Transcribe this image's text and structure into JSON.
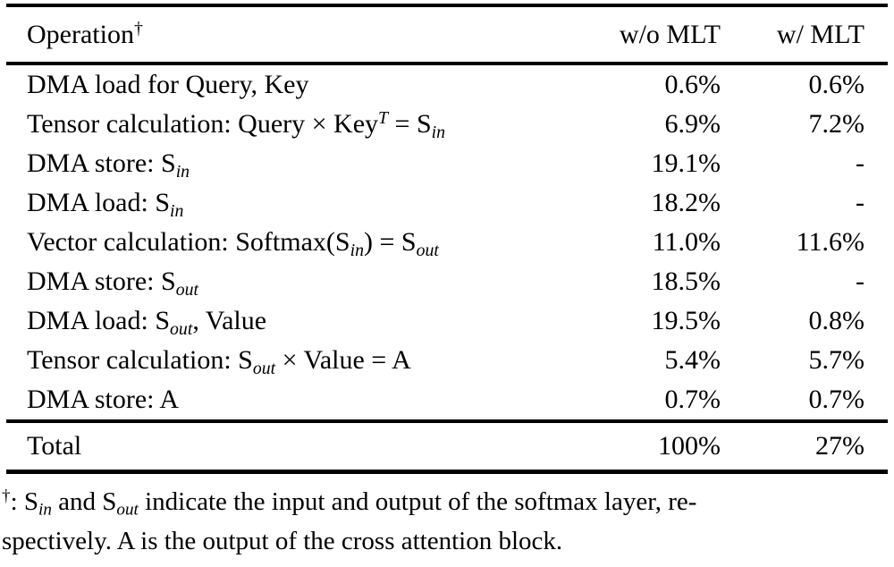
{
  "table": {
    "header": {
      "operation": [
        {
          "t": "Operation"
        },
        {
          "t": "†",
          "s": "sup"
        }
      ],
      "col_wo_mlt": "w/o MLT",
      "col_w_mlt": "w/ MLT"
    },
    "rows": [
      {
        "op": [
          {
            "t": "DMA load for Query, Key"
          }
        ],
        "wo_mlt": "0.6%",
        "w_mlt": "0.6%"
      },
      {
        "op": [
          {
            "t": "Tensor calculation: Query × Key"
          },
          {
            "t": "T",
            "s": "sup",
            "i": true
          },
          {
            "t": " = S"
          },
          {
            "t": "in",
            "s": "sub"
          }
        ],
        "wo_mlt": "6.9%",
        "w_mlt": "7.2%"
      },
      {
        "op": [
          {
            "t": "DMA store: S"
          },
          {
            "t": "in",
            "s": "sub"
          }
        ],
        "wo_mlt": "19.1%",
        "w_mlt": "-"
      },
      {
        "op": [
          {
            "t": "DMA load: S"
          },
          {
            "t": "in",
            "s": "sub"
          }
        ],
        "wo_mlt": "18.2%",
        "w_mlt": "-"
      },
      {
        "op": [
          {
            "t": "Vector calculation: Softmax(S"
          },
          {
            "t": "in",
            "s": "sub"
          },
          {
            "t": ") = S"
          },
          {
            "t": "out",
            "s": "sub"
          }
        ],
        "wo_mlt": "11.0%",
        "w_mlt": "11.6%"
      },
      {
        "op": [
          {
            "t": "DMA store: S"
          },
          {
            "t": "out",
            "s": "sub"
          }
        ],
        "wo_mlt": "18.5%",
        "w_mlt": "-"
      },
      {
        "op": [
          {
            "t": "DMA load: S"
          },
          {
            "t": "out",
            "s": "sub"
          },
          {
            "t": ", Value"
          }
        ],
        "wo_mlt": "19.5%",
        "w_mlt": "0.8%"
      },
      {
        "op": [
          {
            "t": "Tensor calculation: S"
          },
          {
            "t": "out",
            "s": "sub"
          },
          {
            "t": " × Value = A"
          }
        ],
        "wo_mlt": "5.4%",
        "w_mlt": "5.7%"
      },
      {
        "op": [
          {
            "t": "DMA store: A"
          }
        ],
        "wo_mlt": "0.7%",
        "w_mlt": "0.7%"
      }
    ],
    "total": {
      "label": "Total",
      "wo_mlt": "100%",
      "w_mlt": "27%"
    }
  },
  "footnote": {
    "segments": [
      {
        "t": "†",
        "s": "sup"
      },
      {
        "t": ": S"
      },
      {
        "t": "in",
        "s": "sub"
      },
      {
        "t": " and S"
      },
      {
        "t": "out",
        "s": "sub"
      },
      {
        "t": " indicate the input and output of the softmax layer, re-"
      },
      {
        "br": true
      },
      {
        "t": "spectively. A is the output of the cross attention block."
      }
    ]
  },
  "colors": {
    "text": "#000000",
    "background": "#ffffff",
    "rule": "#000000"
  }
}
